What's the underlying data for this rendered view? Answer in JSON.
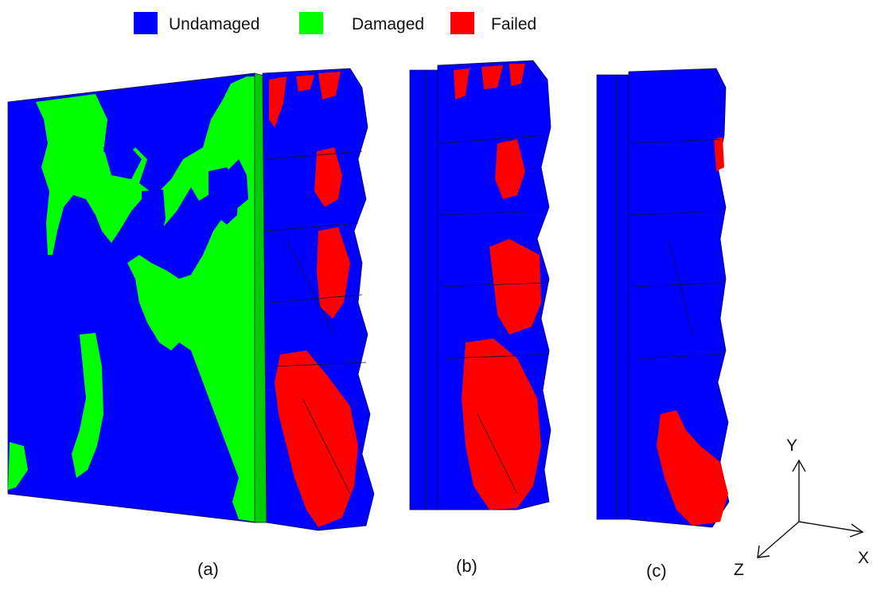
{
  "legend": {
    "items": [
      {
        "label": "Undamaged",
        "color": "#0000ff"
      },
      {
        "label": "Damaged",
        "color": "#00ff00"
      },
      {
        "label": "Failed",
        "color": "#ff0000"
      }
    ]
  },
  "panels": [
    {
      "label": "(a)"
    },
    {
      "label": "(b)"
    },
    {
      "label": "(c)"
    }
  ],
  "axes": {
    "x": "X",
    "y": "Y",
    "z": "Z"
  },
  "colors": {
    "undamaged": "#0000ff",
    "damaged": "#00ff00",
    "failed": "#ff0000",
    "edge": "#10103a"
  }
}
